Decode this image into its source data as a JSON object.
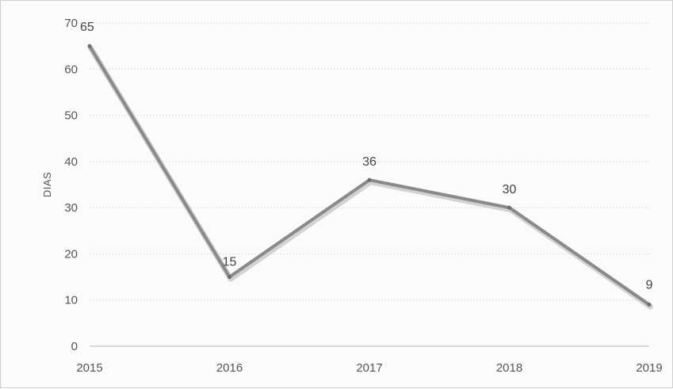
{
  "chart_data": {
    "type": "line",
    "title": "",
    "xlabel": "",
    "ylabel": "DIAS",
    "categories": [
      "2015",
      "2016",
      "2017",
      "2018",
      "2019"
    ],
    "series": [
      {
        "values": [
          65,
          15,
          36,
          30,
          9
        ],
        "color": "#8a8a8a",
        "data_labels": [
          "65",
          "15",
          "36",
          "30",
          "9"
        ]
      }
    ],
    "ylim": [
      0,
      70
    ],
    "yticks": [
      0,
      10,
      20,
      30,
      40,
      50,
      60,
      70
    ],
    "grid": true,
    "legend": "none"
  }
}
